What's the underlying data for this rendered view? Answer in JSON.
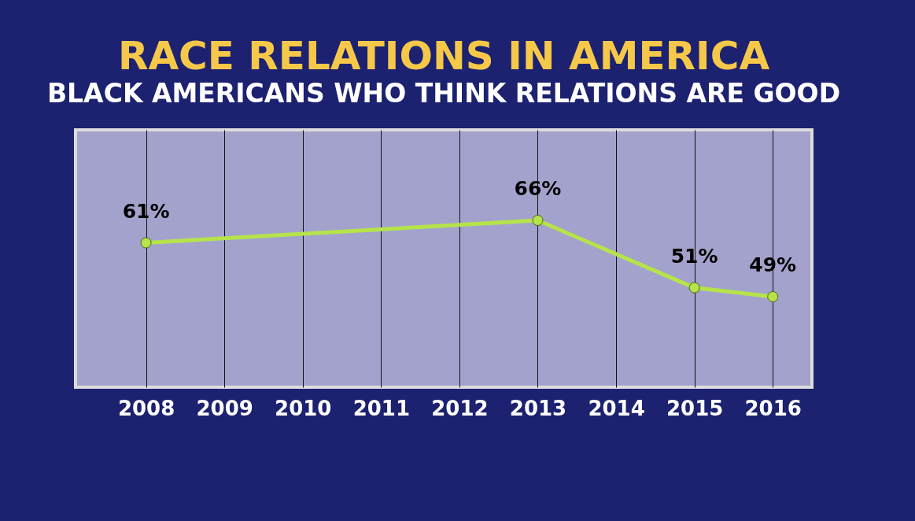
{
  "chart_data": {
    "type": "line",
    "title": "RACE RELATIONS IN AMERICA",
    "subtitle": "BLACK AMERICANS WHO THINK RELATIONS ARE GOOD",
    "x": [
      2008,
      2013,
      2015,
      2016
    ],
    "series": [
      {
        "color": "#b6e34a",
        "values": [
          61,
          66,
          51,
          49
        ],
        "value_labels": [
          "61%",
          "66%",
          "51%",
          "49%"
        ]
      }
    ],
    "xlim": [
      2007.1,
      2016.5
    ],
    "xticks": [
      2008,
      2009,
      2010,
      2011,
      2012,
      2013,
      2014,
      2015,
      2016
    ],
    "grid": "x",
    "marker": "circle",
    "line_style": "solid",
    "legend": false
  }
}
